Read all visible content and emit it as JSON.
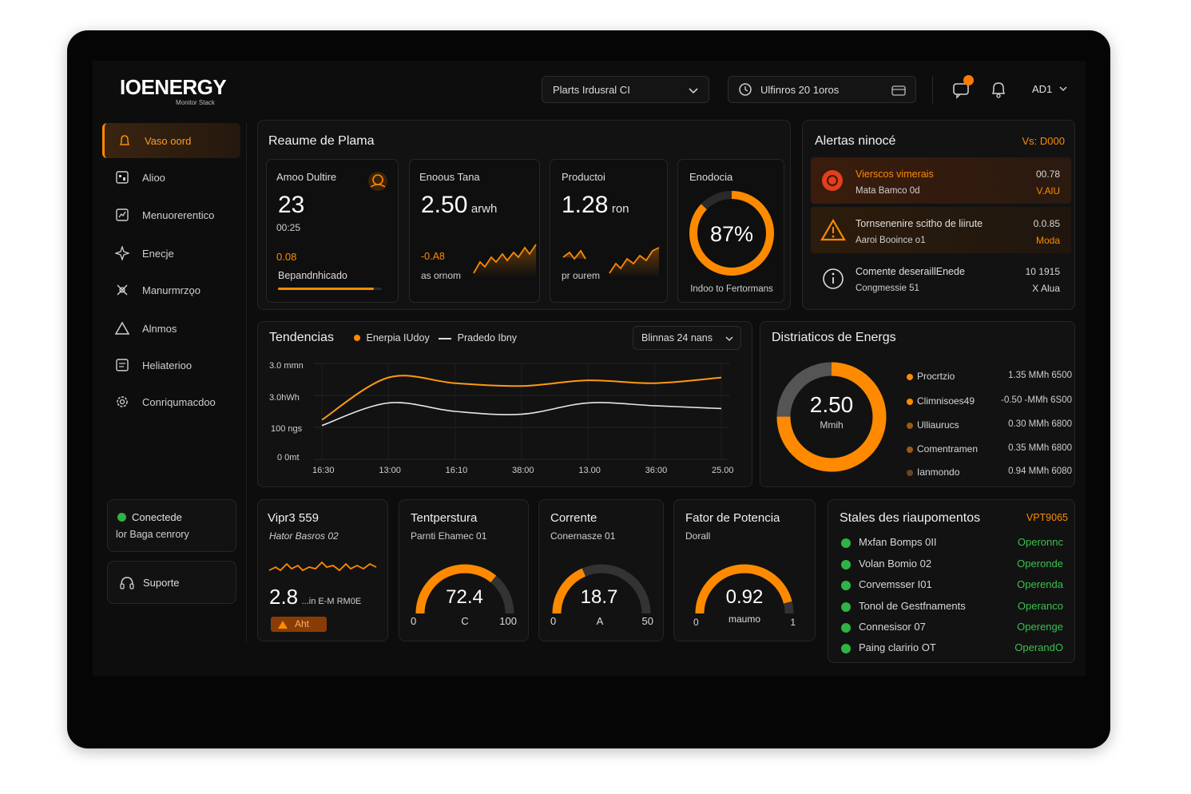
{
  "brand": {
    "name": "IOENERGY",
    "tagline": "Monitor Stack"
  },
  "header": {
    "plant_select": "Plarts Irdusral CI",
    "time_range": "Ulfinros 20 1oros",
    "user": "AD1"
  },
  "sidebar": {
    "items": [
      {
        "label": "Vaso oord",
        "icon": "bell-icon",
        "active": true
      },
      {
        "label": "Alioo",
        "icon": "grid-icon"
      },
      {
        "label": "Menuorerentico",
        "icon": "chart-box-icon"
      },
      {
        "label": "Enecje",
        "icon": "sparkle-icon"
      },
      {
        "label": "Manurmrzǫo",
        "icon": "tools-icon"
      },
      {
        "label": "Alnmos",
        "icon": "warning-icon"
      },
      {
        "label": "Heliaterioo",
        "icon": "report-icon"
      },
      {
        "label": "Conriqumacdoo",
        "icon": "gear-icon"
      }
    ],
    "status": {
      "line1": "Conectede",
      "line2": "lor Baga cenrory",
      "color": "#2fb344"
    },
    "support": "Suporte"
  },
  "summary": {
    "title": "Reaume de Plama",
    "cards": [
      {
        "label": "Amoo Dultire",
        "value": "23",
        "sub": "00:25",
        "trend": "0.08",
        "foot": "Bepandnhicado"
      },
      {
        "label": "Enoous Tana",
        "value": "2.50",
        "unit": "arwh",
        "trend": "-0.A8",
        "foot": "as ornom"
      },
      {
        "label": "Productoi",
        "value": "1.28",
        "unit": "ron",
        "foot": "pr ourem"
      },
      {
        "label": "Enodocia",
        "value": "87%",
        "percent": 87,
        "foot": "Indoo to Fertormans"
      }
    ]
  },
  "alerts": {
    "title": "Alertas ninocé",
    "link": "Vs: D000",
    "items": [
      {
        "title": "Vierscos vimerais",
        "sub": "Mata Bamco 0d",
        "time": "00.78",
        "tag": "V.AlU",
        "level": "critical"
      },
      {
        "title": "Tornsenenire scitho de liirute",
        "sub": "Aaroi Booince o1",
        "time": "0.0.85",
        "tag": "Moda",
        "level": "warning"
      },
      {
        "title": "Comente deseraillEnede",
        "sub": "Congmessie 51",
        "time": "10 1915",
        "tag": "X Alua",
        "level": "info"
      }
    ]
  },
  "trends": {
    "title": "Tendencias",
    "legend_energy": "Enerpia IUdoy",
    "legend_production": "Pradedo Ibny",
    "range": "Blinnas 24 nans",
    "y_labels": [
      "3.0 mmn",
      "3.0hWh",
      "100 ngs",
      "0 0mt"
    ],
    "x_labels": [
      "16:30",
      "13:00",
      "16:10",
      "38:00",
      "13.00",
      "36:00",
      "25.00"
    ]
  },
  "distribution": {
    "title": "Distriaticos de Energs",
    "center_value": "2.50",
    "center_unit": "Mmih",
    "items": [
      {
        "name": "Procrtzio",
        "value": "1.35 MMh 6500",
        "color": "#ff8a00"
      },
      {
        "name": "Climnisoes49",
        "value": "-0.50 -MMh 6S00",
        "color": "#ff8a00"
      },
      {
        "name": "Ulliaurucs",
        "value": "0.30 MMh 6800",
        "color": "#9a5a18"
      },
      {
        "name": "Comentramen",
        "value": "0.35 MMh 6800",
        "color": "#9a5a18"
      },
      {
        "name": "Ianmondo",
        "value": "0.94 MMh 6080",
        "color": "#6a4420"
      }
    ]
  },
  "vibration": {
    "title": "Vipr3 559",
    "sub": "Hator Basros 02",
    "value": "2.8",
    "unit": "...in E-M RM0E",
    "badge": "Aht"
  },
  "gauges": [
    {
      "title": "Tentperstura",
      "sub": "Parnti Ehamec 01",
      "value": "72.4",
      "min": "0",
      "mid": "C",
      "max": "100",
      "fraction": 0.72
    },
    {
      "title": "Corrente",
      "sub": "Conernasze 01",
      "value": "18.7",
      "min": "0",
      "mid": "A",
      "max": "50",
      "fraction": 0.37
    },
    {
      "title": "Fator de Potencia",
      "sub": "Dorall",
      "value": "0.92",
      "min": "0",
      "mid": "maumo",
      "max": "1",
      "fraction": 0.92
    }
  ],
  "equipment": {
    "title": "Stales des riaupomentos",
    "link": "VPT9065",
    "items": [
      {
        "name": "Mxfan Bomps 0II",
        "status": "Operonnc"
      },
      {
        "name": "Volan Bomio 02",
        "status": "Operonde"
      },
      {
        "name": "Corvemsser I01",
        "status": "Operenda"
      },
      {
        "name": "Tonol de Gestfnaments",
        "status": "Operanco"
      },
      {
        "name": "Connesisor 07",
        "status": "Operenge"
      },
      {
        "name": "Paing claririo OT",
        "status": "OperandO"
      }
    ]
  },
  "colors": {
    "accent": "#ff8a00",
    "ok": "#2fb344",
    "bg": "#0d0d0d",
    "panel": "#121212"
  },
  "chart_data": {
    "type": "line",
    "x": [
      "16:30",
      "13:00",
      "16:10",
      "38:00",
      "13.00",
      "36:00",
      "25.00"
    ],
    "series": [
      {
        "name": "Enerpia IUdoy",
        "values": [
          1.4,
          2.9,
          2.7,
          2.6,
          2.8,
          2.7,
          2.9
        ]
      },
      {
        "name": "Pradedo Ibny",
        "values": [
          1.2,
          2.0,
          1.7,
          1.6,
          2.0,
          1.9,
          1.8
        ]
      }
    ],
    "y_tick_labels": [
      "3.0 mmn",
      "3.0hWh",
      "100 ngs",
      "0 0mt"
    ],
    "title": "Tendencias",
    "grid": true,
    "legend": "top"
  }
}
